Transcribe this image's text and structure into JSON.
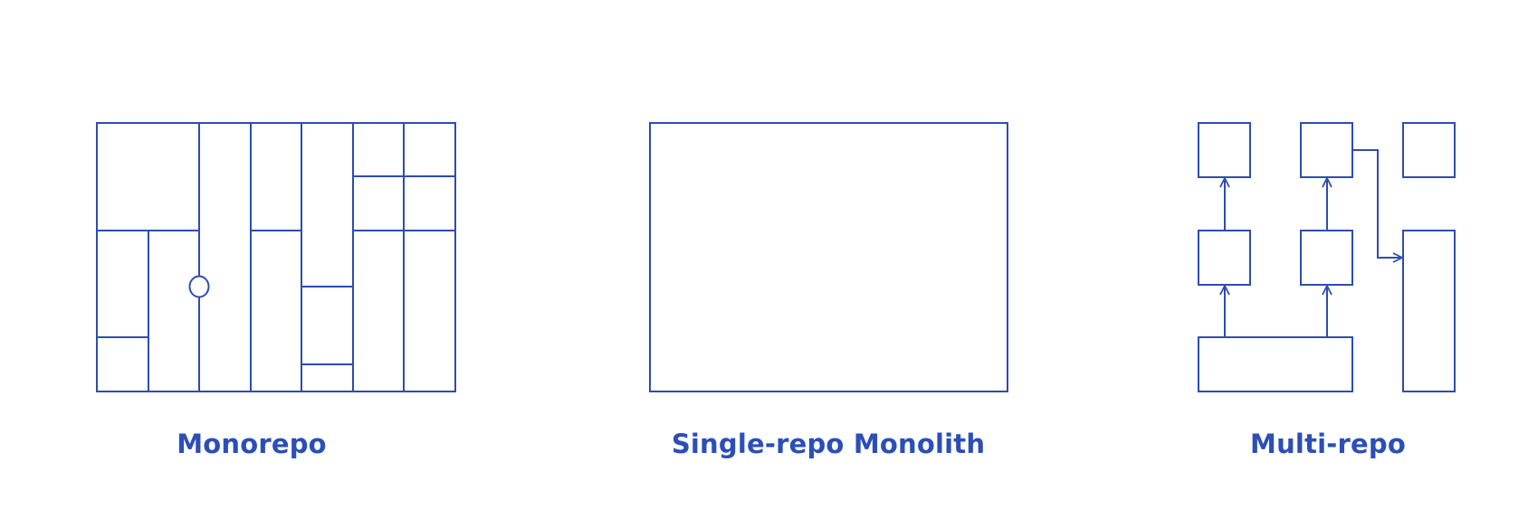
{
  "diagrams": [
    {
      "id": "monorepo",
      "label": "Monorepo"
    },
    {
      "id": "single-repo-monolith",
      "label": "Single-repo Monolith"
    },
    {
      "id": "multi-repo",
      "label": "Multi-repo"
    }
  ],
  "colors": {
    "stroke": "#2d4db0",
    "label": "#2b4eb8",
    "background": "#ffffff"
  }
}
